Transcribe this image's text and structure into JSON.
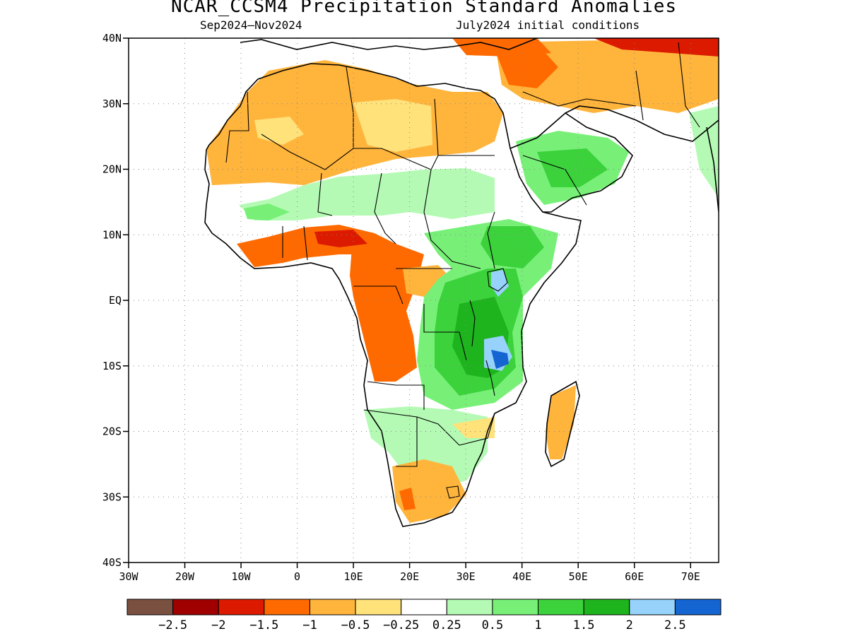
{
  "title": "NCAR_CCSM4 Precipitation Standard Anomalies",
  "subtitle_left": "Sep2024–Nov2024",
  "subtitle_right": "July2024 initial conditions",
  "map": {
    "lon_range": [
      -30,
      75
    ],
    "lat_range": [
      -40,
      40
    ],
    "lat_ticks": [
      {
        "value": 40,
        "label": "40N"
      },
      {
        "value": 30,
        "label": "30N"
      },
      {
        "value": 20,
        "label": "20N"
      },
      {
        "value": 10,
        "label": "10N"
      },
      {
        "value": 0,
        "label": "EQ"
      },
      {
        "value": -10,
        "label": "10S"
      },
      {
        "value": -20,
        "label": "20S"
      },
      {
        "value": -30,
        "label": "30S"
      },
      {
        "value": -40,
        "label": "40S"
      }
    ],
    "lon_ticks": [
      {
        "value": -30,
        "label": "30W"
      },
      {
        "value": -20,
        "label": "20W"
      },
      {
        "value": -10,
        "label": "10W"
      },
      {
        "value": 0,
        "label": "0"
      },
      {
        "value": 10,
        "label": "10E"
      },
      {
        "value": 20,
        "label": "20E"
      },
      {
        "value": 30,
        "label": "30E"
      },
      {
        "value": 40,
        "label": "40E"
      },
      {
        "value": 50,
        "label": "50E"
      },
      {
        "value": 60,
        "label": "60E"
      },
      {
        "value": 70,
        "label": "70E"
      }
    ],
    "grid": "dotted"
  },
  "colorbar": {
    "colors": [
      "#7a5040",
      "#a00000",
      "#dc1a00",
      "#ff6a00",
      "#ffb43c",
      "#ffe27a",
      "#ffffff",
      "#b4fab4",
      "#78f078",
      "#3cd23c",
      "#1eb41e",
      "#96d2fa",
      "#1464d2"
    ],
    "labels": [
      "-2.5",
      "-2",
      "-1.5",
      "-1",
      "-0.5",
      "-0.25",
      "0.25",
      "0.5",
      "1",
      "1.5",
      "2",
      "2.5"
    ]
  }
}
